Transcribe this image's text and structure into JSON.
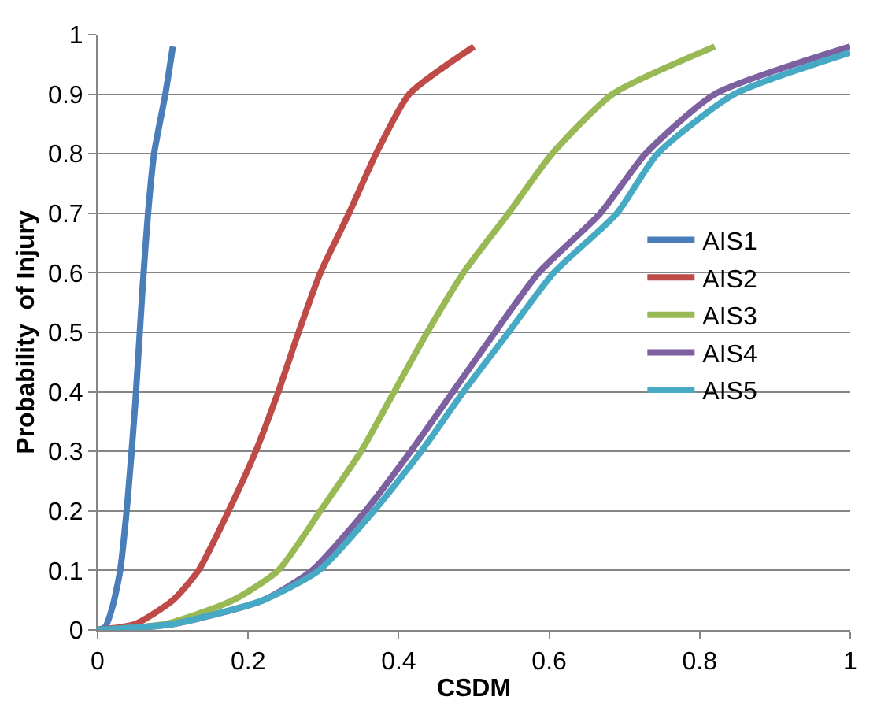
{
  "chart_data": {
    "type": "line",
    "xlabel": "CSDM",
    "ylabel": "Probability  of Injury",
    "xlim": [
      0,
      1
    ],
    "ylim": [
      0,
      1
    ],
    "xticks": [
      0,
      0.2,
      0.4,
      0.6,
      0.8,
      1
    ],
    "yticks": [
      0,
      0.1,
      0.2,
      0.3,
      0.4,
      0.5,
      0.6,
      0.7,
      0.8,
      0.9,
      1
    ],
    "grid": "y",
    "legend": "right",
    "marker": "none",
    "line_style": "solid",
    "series": [
      {
        "name": "AIS1",
        "color": "#4a7ebb",
        "x": [
          0,
          0.01,
          0.02,
          0.03,
          0.04,
          0.05,
          0.06,
          0.067,
          0.075,
          0.09,
          0.1
        ],
        "values": [
          0,
          0.005,
          0.04,
          0.1,
          0.22,
          0.38,
          0.58,
          0.7,
          0.8,
          0.9,
          0.98
        ]
      },
      {
        "name": "AIS2",
        "color": "#be4b48",
        "x": [
          0,
          0.05,
          0.1,
          0.134,
          0.174,
          0.21,
          0.24,
          0.267,
          0.296,
          0.334,
          0.37,
          0.414,
          0.5
        ],
        "values": [
          0,
          0.01,
          0.05,
          0.1,
          0.2,
          0.3,
          0.4,
          0.5,
          0.6,
          0.7,
          0.8,
          0.9,
          0.98
        ]
      },
      {
        "name": "AIS3",
        "color": "#98b954",
        "x": [
          0,
          0.09,
          0.18,
          0.24,
          0.296,
          0.35,
          0.394,
          0.438,
          0.486,
          0.546,
          0.604,
          0.684,
          0.82
        ],
        "values": [
          0,
          0.01,
          0.05,
          0.1,
          0.2,
          0.3,
          0.4,
          0.5,
          0.6,
          0.7,
          0.8,
          0.9,
          0.98
        ]
      },
      {
        "name": "AIS4",
        "color": "#7d60a0",
        "x": [
          0,
          0.1,
          0.22,
          0.285,
          0.356,
          0.416,
          0.472,
          0.528,
          0.586,
          0.668,
          0.728,
          0.82,
          1
        ],
        "values": [
          0,
          0.01,
          0.05,
          0.1,
          0.2,
          0.3,
          0.4,
          0.5,
          0.6,
          0.7,
          0.8,
          0.9,
          0.98
        ]
      },
      {
        "name": "AIS5",
        "color": "#46aac5",
        "x": [
          0,
          0.1,
          0.22,
          0.294,
          0.367,
          0.43,
          0.486,
          0.546,
          0.606,
          0.69,
          0.744,
          0.846,
          1
        ],
        "values": [
          0,
          0.01,
          0.05,
          0.1,
          0.2,
          0.3,
          0.4,
          0.5,
          0.6,
          0.7,
          0.8,
          0.9,
          0.97
        ]
      }
    ]
  }
}
